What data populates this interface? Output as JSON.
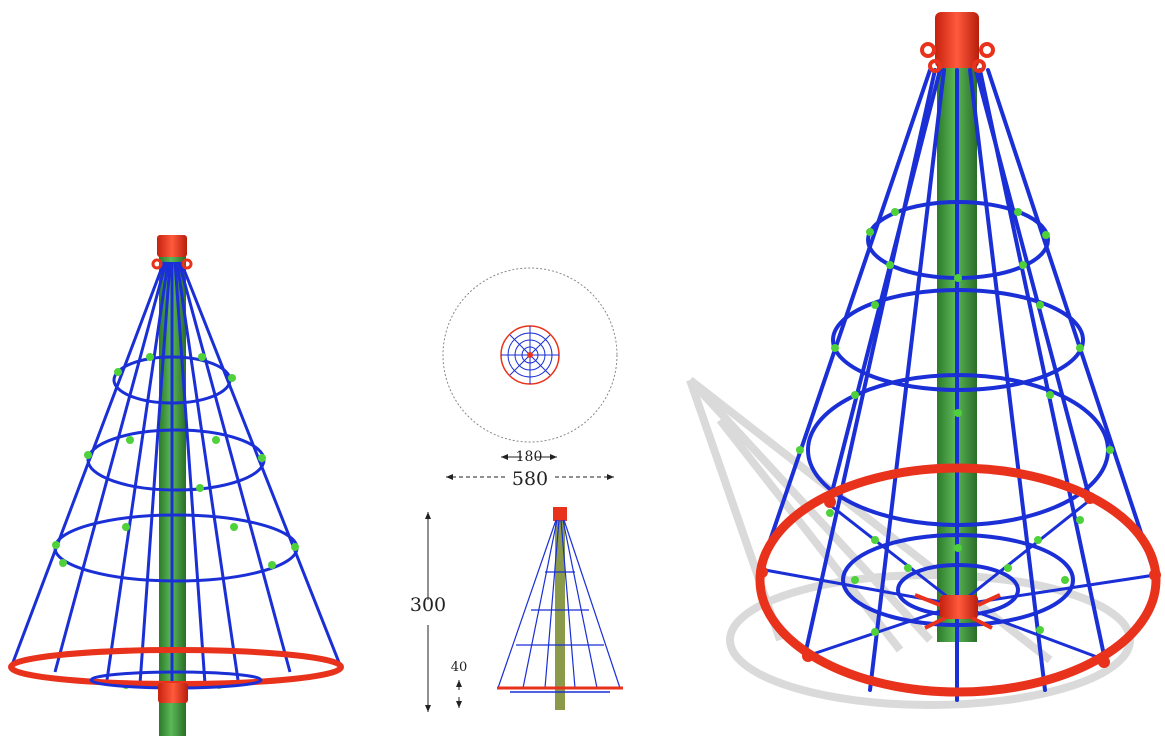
{
  "dimensions": {
    "top_inner_diameter": "180",
    "top_outer_diameter": "580",
    "height": "300",
    "base_clearance": "40"
  },
  "colors": {
    "frame": "#1a2fd6",
    "pole": "#3f9a3a",
    "pole_dark": "#2c7a2a",
    "ring": "#e8321c",
    "cap": "#e8321c",
    "joint": "#4fd13a",
    "shadow": "#d6d6d6",
    "dim_line": "#222222",
    "plan_circle": "#888888"
  },
  "views": [
    {
      "name": "front-view"
    },
    {
      "name": "plan-view"
    },
    {
      "name": "elevation-view"
    },
    {
      "name": "perspective-view"
    }
  ]
}
